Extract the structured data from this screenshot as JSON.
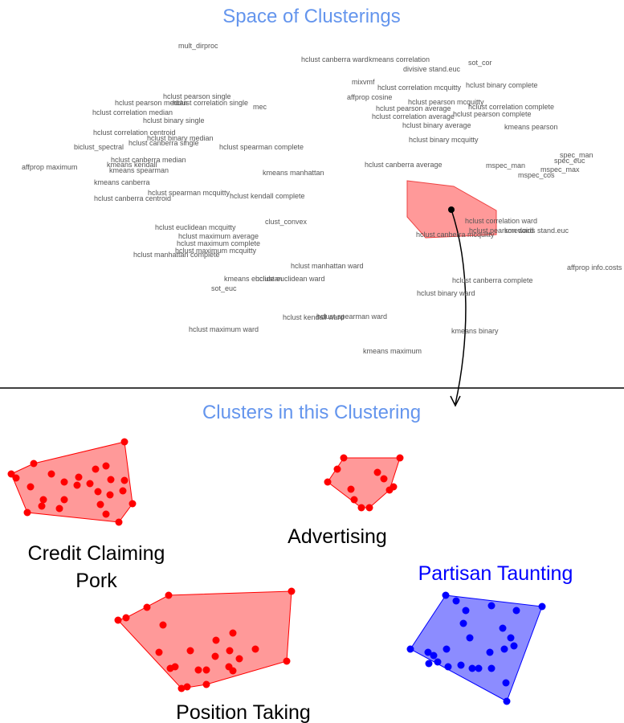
{
  "header": {
    "title": "Space of Clusterings"
  },
  "methods": [
    "mult_dirproc",
    "hclust canberra ward",
    "kmeans correlation",
    "sot_cor",
    "divisive stand.euc",
    "mixvmf",
    "hclust correlation mcquitty",
    "hclust binary complete",
    "hclust pearson single",
    "affprop cosine",
    "hclust pearson median",
    "hclust correlation single",
    "mec",
    "hclust pearson mcquitty",
    "hclust pearson average",
    "hclust correlation complete",
    "hclust correlation median",
    "hclust correlation average",
    "hclust pearson complete",
    "hclust binary single",
    "hclust binary average",
    "kmeans pearson",
    "hclust correlation centroid",
    "hclust binary median",
    "hclust canberra single",
    "hclust binary mcquitty",
    "biclust_spectral",
    "hclust spearman complete",
    "spec_man",
    "spec_euc",
    "hclust canberra median",
    "affprop maximum",
    "kmeans kendall",
    "hclust canberra average",
    "mspec_man",
    "mspec_max",
    "kmeans spearman",
    "kmeans manhattan",
    "mspec_cos",
    "kmeans canberra",
    "hclust spearman mcquitty",
    "hclust kendall complete",
    "hclust canberra centroid",
    "clust_convex",
    "hclust correlation ward",
    "hclust pearson ward",
    "kmedoids stand.euc",
    "hclust canberra mcquitty",
    "hclust euclidean mcquitty",
    "hclust maximum average",
    "hclust maximum complete",
    "hclust maximum mcquitty",
    "hclust manhattan complete",
    "hclust manhattan ward",
    "affprop info.costs",
    "kmeans euclidean",
    "hclust euclidean ward",
    "sot_euc",
    "hclust canberra complete",
    "hclust binary ward",
    "hclust kendall ward",
    "hclust spearman ward",
    "hclust maximum ward",
    "kmeans binary",
    "kmeans maximum"
  ],
  "subheader": {
    "title": "Clusters in this Clustering"
  },
  "clusters": [
    {
      "lines": [
        "Credit Claiming",
        "Pork"
      ]
    },
    {
      "lines": [
        "Advertising"
      ]
    },
    {
      "lines": [
        "Position Taking"
      ]
    },
    {
      "lines": [
        "Partisan Taunting"
      ]
    }
  ]
}
